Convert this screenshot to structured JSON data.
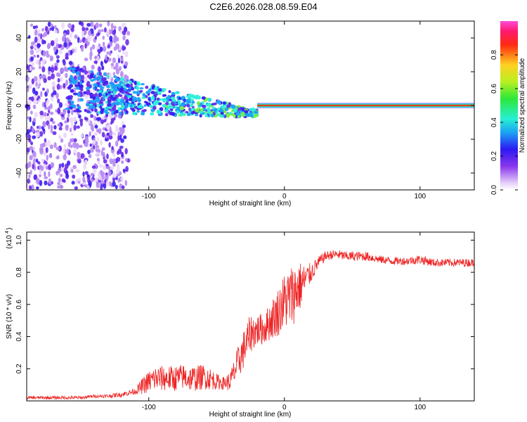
{
  "chart_data": [
    {
      "type": "heatmap",
      "title": "C2E6.2026.028.08.59.E04",
      "xlabel": "Height of straight line (km)",
      "ylabel": "Frequency (Hz)",
      "xlim": [
        -190,
        140
      ],
      "ylim": [
        -50,
        50
      ],
      "xticks": [
        -100,
        0,
        100
      ],
      "xtick_labels": [
        "-100",
        "0",
        "100"
      ],
      "yticks": [
        -40,
        -20,
        0,
        20,
        40
      ],
      "ytick_labels": [
        "-40",
        "-20",
        "0",
        "20",
        "40"
      ],
      "colorbar": {
        "label": "Normalized spectral amplitude",
        "range": [
          0,
          1
        ],
        "ticks": [
          0,
          0.2,
          0.4,
          0.6,
          0.8
        ],
        "tick_labels": [
          "0.0",
          "0.2",
          "0.4",
          "0.6",
          "0.8"
        ],
        "colormap": "rainbow (white-violet-blue-cyan-green-yellow-red-magenta)"
      },
      "features": {
        "carrier_line": {
          "x_range": [
            -20,
            140
          ],
          "frequency_hz": 0,
          "amplitude": 0.9
        },
        "scatter_region": {
          "x_range": [
            -190,
            -115
          ],
          "frequency_spread_hz": 50,
          "amplitude": 0.1
        },
        "converging_band": {
          "x_range": [
            -160,
            -20
          ],
          "centre_hz_start": 10,
          "centre_hz_end": -5
        }
      },
      "colors": {
        "low": "#ecd8fb",
        "mid": "#3b1ff0",
        "cyan": "#2ef0d8",
        "high": "#ff1010",
        "peak": "#ff33cc"
      }
    },
    {
      "type": "line",
      "title": "",
      "xlabel": "Height of straight line (km)",
      "ylabel": "SNR (10 * v/v)",
      "multiplier_label": "(x10",
      "multiplier_exponent": "4",
      "xlim": [
        -190,
        140
      ],
      "ylim": [
        0,
        1.05
      ],
      "xticks": [
        -100,
        0,
        100
      ],
      "xtick_labels": [
        "-100",
        "0",
        "100"
      ],
      "yticks": [
        0.2,
        0.4,
        0.6,
        0.8,
        1.0
      ],
      "ytick_labels": [
        "0.2",
        "0.4",
        "0.6",
        "0.8",
        "1.0"
      ],
      "series": [
        {
          "name": "SNR",
          "color": "#ee2222",
          "x": [
            -190,
            -180,
            -170,
            -160,
            -150,
            -140,
            -130,
            -120,
            -110,
            -105,
            -100,
            -95,
            -90,
            -85,
            -80,
            -75,
            -70,
            -65,
            -60,
            -55,
            -50,
            -45,
            -40,
            -35,
            -30,
            -25,
            -20,
            -15,
            -10,
            -5,
            0,
            5,
            10,
            15,
            20,
            25,
            30,
            35,
            40,
            45,
            50,
            55,
            60,
            70,
            80,
            90,
            100,
            110,
            120,
            130,
            140
          ],
          "values": [
            0.02,
            0.02,
            0.02,
            0.02,
            0.02,
            0.03,
            0.03,
            0.04,
            0.06,
            0.09,
            0.12,
            0.14,
            0.14,
            0.14,
            0.14,
            0.15,
            0.14,
            0.14,
            0.15,
            0.14,
            0.12,
            0.11,
            0.12,
            0.22,
            0.32,
            0.42,
            0.44,
            0.45,
            0.5,
            0.55,
            0.62,
            0.65,
            0.7,
            0.75,
            0.8,
            0.86,
            0.9,
            0.91,
            0.91,
            0.9,
            0.9,
            0.9,
            0.9,
            0.88,
            0.87,
            0.87,
            0.88,
            0.86,
            0.86,
            0.86,
            0.86
          ],
          "noise_amplitude": [
            0.01,
            0.01,
            0.01,
            0.01,
            0.01,
            0.01,
            0.012,
            0.015,
            0.02,
            0.05,
            0.07,
            0.08,
            0.08,
            0.08,
            0.08,
            0.08,
            0.08,
            0.08,
            0.08,
            0.07,
            0.05,
            0.04,
            0.06,
            0.1,
            0.12,
            0.12,
            0.1,
            0.1,
            0.12,
            0.15,
            0.18,
            0.2,
            0.18,
            0.1,
            0.06,
            0.04,
            0.03,
            0.03,
            0.03,
            0.03,
            0.03,
            0.03,
            0.03,
            0.025,
            0.025,
            0.025,
            0.03,
            0.025,
            0.025,
            0.025,
            0.025
          ]
        }
      ]
    }
  ]
}
